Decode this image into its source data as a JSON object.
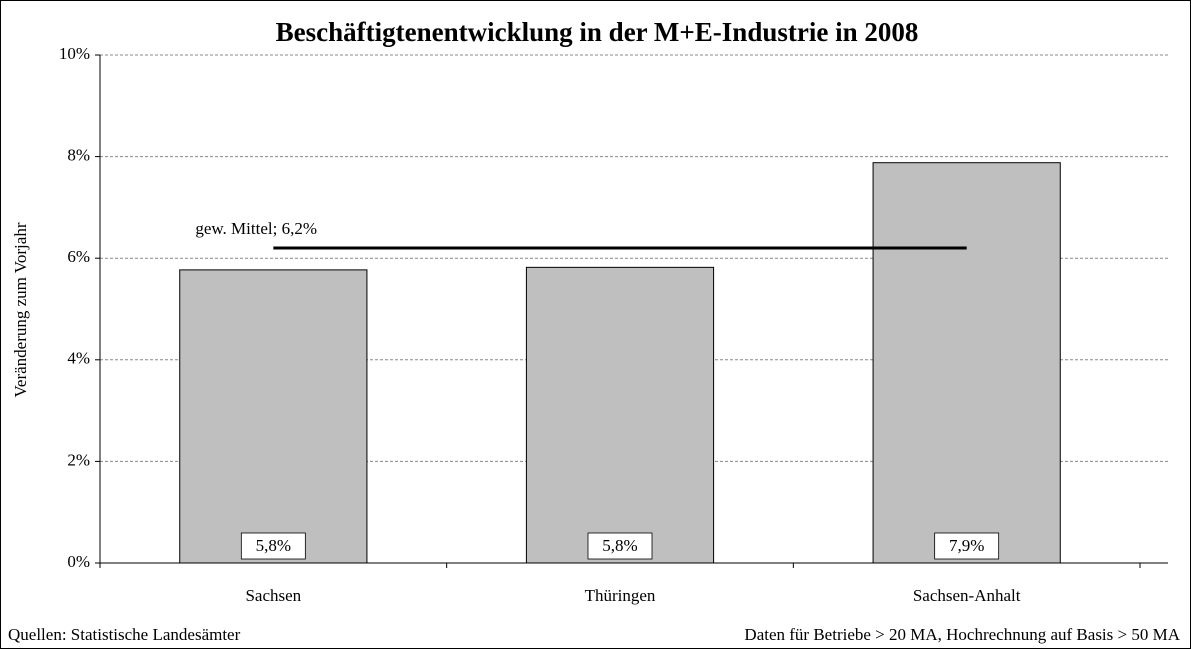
{
  "chart_data": {
    "type": "bar",
    "title": "Beschäftigtenentwicklung in der M+E-Industrie in 2008",
    "ylabel": "Veränderung zum Vorjahr",
    "categories": [
      "Sachsen",
      "Thüringen",
      "Sachsen-Anhalt"
    ],
    "values": [
      5.77,
      5.82,
      7.88
    ],
    "value_labels": [
      "5,8%",
      "5,8%",
      "7,9%"
    ],
    "color": "#bfbfbf",
    "ylim": [
      0,
      10
    ],
    "yticks": [
      {
        "value": 0,
        "label": "0%"
      },
      {
        "value": 2,
        "label": "2%"
      },
      {
        "value": 4,
        "label": "4%"
      },
      {
        "value": 6,
        "label": "6%"
      },
      {
        "value": 8,
        "label": "8%"
      },
      {
        "value": 10,
        "label": "10%"
      }
    ],
    "grid": true,
    "mean": {
      "value": 6.2,
      "label": "gew. Mittel; 6,2%"
    },
    "source": "Quellen: Statistische Landesämter",
    "note": "Daten für Betriebe > 20 MA, Hochrechnung auf Basis > 50 MA"
  }
}
